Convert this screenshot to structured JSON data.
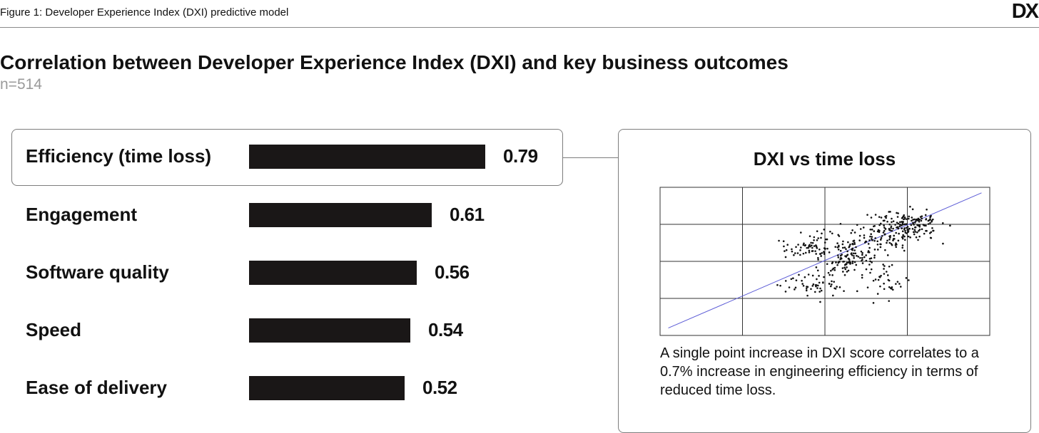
{
  "header": {
    "caption": "Figure 1: Developer Experience Index (DXI) predictive model",
    "logo_text": "DX"
  },
  "chart_data": [
    {
      "type": "bar",
      "orientation": "horizontal",
      "title": "Correlation between Developer Experience Index (DXI) and key business outcomes",
      "subtitle": "n=514",
      "categories": [
        "Efficiency (time loss)",
        "Engagement",
        "Software quality",
        "Speed",
        "Ease of delivery"
      ],
      "values": [
        0.79,
        0.61,
        0.56,
        0.54,
        0.52
      ],
      "value_labels": [
        "0.79",
        "0.61",
        "0.56",
        "0.54",
        "0.52"
      ],
      "highlighted_category": "Efficiency (time loss)",
      "bar_color": "#1a1717",
      "xlim": [
        0,
        0.79
      ]
    },
    {
      "type": "scatter",
      "title": "DXI vs time loss",
      "note": "A single point increase in DXI score correlates to a 0.7% increase in engineering efficiency in terms of reduced time loss.",
      "axes_labels_shown": false,
      "grid": true,
      "grid_cells": [
        4,
        4
      ],
      "xlim": [
        0,
        4
      ],
      "ylim": [
        0,
        4
      ],
      "trend_line": {
        "from": [
          0.1,
          0.2
        ],
        "to": [
          3.9,
          3.85
        ],
        "color": "#5b5bd6"
      },
      "point_color": "#111111",
      "clusters": [
        {
          "cx": 1.9,
          "cy": 1.4,
          "sx": 0.28,
          "sy": 0.25,
          "n": 60
        },
        {
          "cx": 2.3,
          "cy": 2.15,
          "sx": 0.3,
          "sy": 0.42,
          "n": 150
        },
        {
          "cx": 2.8,
          "cy": 2.75,
          "sx": 0.32,
          "sy": 0.3,
          "n": 130
        },
        {
          "cx": 2.75,
          "cy": 1.4,
          "sx": 0.15,
          "sy": 0.35,
          "n": 30
        },
        {
          "cx": 3.05,
          "cy": 3.1,
          "sx": 0.25,
          "sy": 0.2,
          "n": 90
        },
        {
          "cx": 1.8,
          "cy": 2.4,
          "sx": 0.22,
          "sy": 0.2,
          "n": 54
        }
      ]
    }
  ]
}
